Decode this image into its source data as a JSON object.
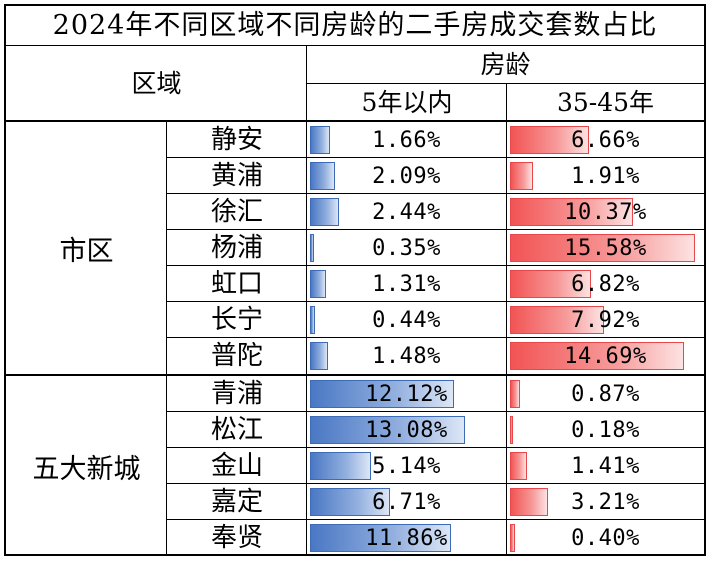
{
  "title": "2024年不同区域不同房龄的二手房成交套数占比",
  "header": {
    "region": "区域",
    "age_group": "房龄",
    "col1": "5年以内",
    "col2": "35-45年"
  },
  "max_value": 16,
  "groups": [
    {
      "name": "市区",
      "rows": [
        {
          "district": "静安",
          "v1": 1.66,
          "v1_label": "1.66%",
          "v2": 6.66,
          "v2_label": "6.66%"
        },
        {
          "district": "黄浦",
          "v1": 2.09,
          "v1_label": "2.09%",
          "v2": 1.91,
          "v2_label": "1.91%"
        },
        {
          "district": "徐汇",
          "v1": 2.44,
          "v1_label": "2.44%",
          "v2": 10.37,
          "v2_label": "10.37%"
        },
        {
          "district": "杨浦",
          "v1": 0.35,
          "v1_label": "0.35%",
          "v2": 15.58,
          "v2_label": "15.58%"
        },
        {
          "district": "虹口",
          "v1": 1.31,
          "v1_label": "1.31%",
          "v2": 6.82,
          "v2_label": "6.82%"
        },
        {
          "district": "长宁",
          "v1": 0.44,
          "v1_label": "0.44%",
          "v2": 7.92,
          "v2_label": "7.92%"
        },
        {
          "district": "普陀",
          "v1": 1.48,
          "v1_label": "1.48%",
          "v2": 14.69,
          "v2_label": "14.69%"
        }
      ]
    },
    {
      "name": "五大新城",
      "rows": [
        {
          "district": "青浦",
          "v1": 12.12,
          "v1_label": "12.12%",
          "v2": 0.87,
          "v2_label": "0.87%"
        },
        {
          "district": "松江",
          "v1": 13.08,
          "v1_label": "13.08%",
          "v2": 0.18,
          "v2_label": "0.18%"
        },
        {
          "district": "金山",
          "v1": 5.14,
          "v1_label": "5.14%",
          "v2": 1.41,
          "v2_label": "1.41%"
        },
        {
          "district": "嘉定",
          "v1": 6.71,
          "v1_label": "6.71%",
          "v2": 3.21,
          "v2_label": "3.21%"
        },
        {
          "district": "奉贤",
          "v1": 11.86,
          "v1_label": "11.86%",
          "v2": 0.4,
          "v2_label": "0.40%"
        }
      ]
    }
  ],
  "colors": {
    "bar_5yr": "#4a78c4",
    "bar_35_45yr": "#f25454"
  }
}
